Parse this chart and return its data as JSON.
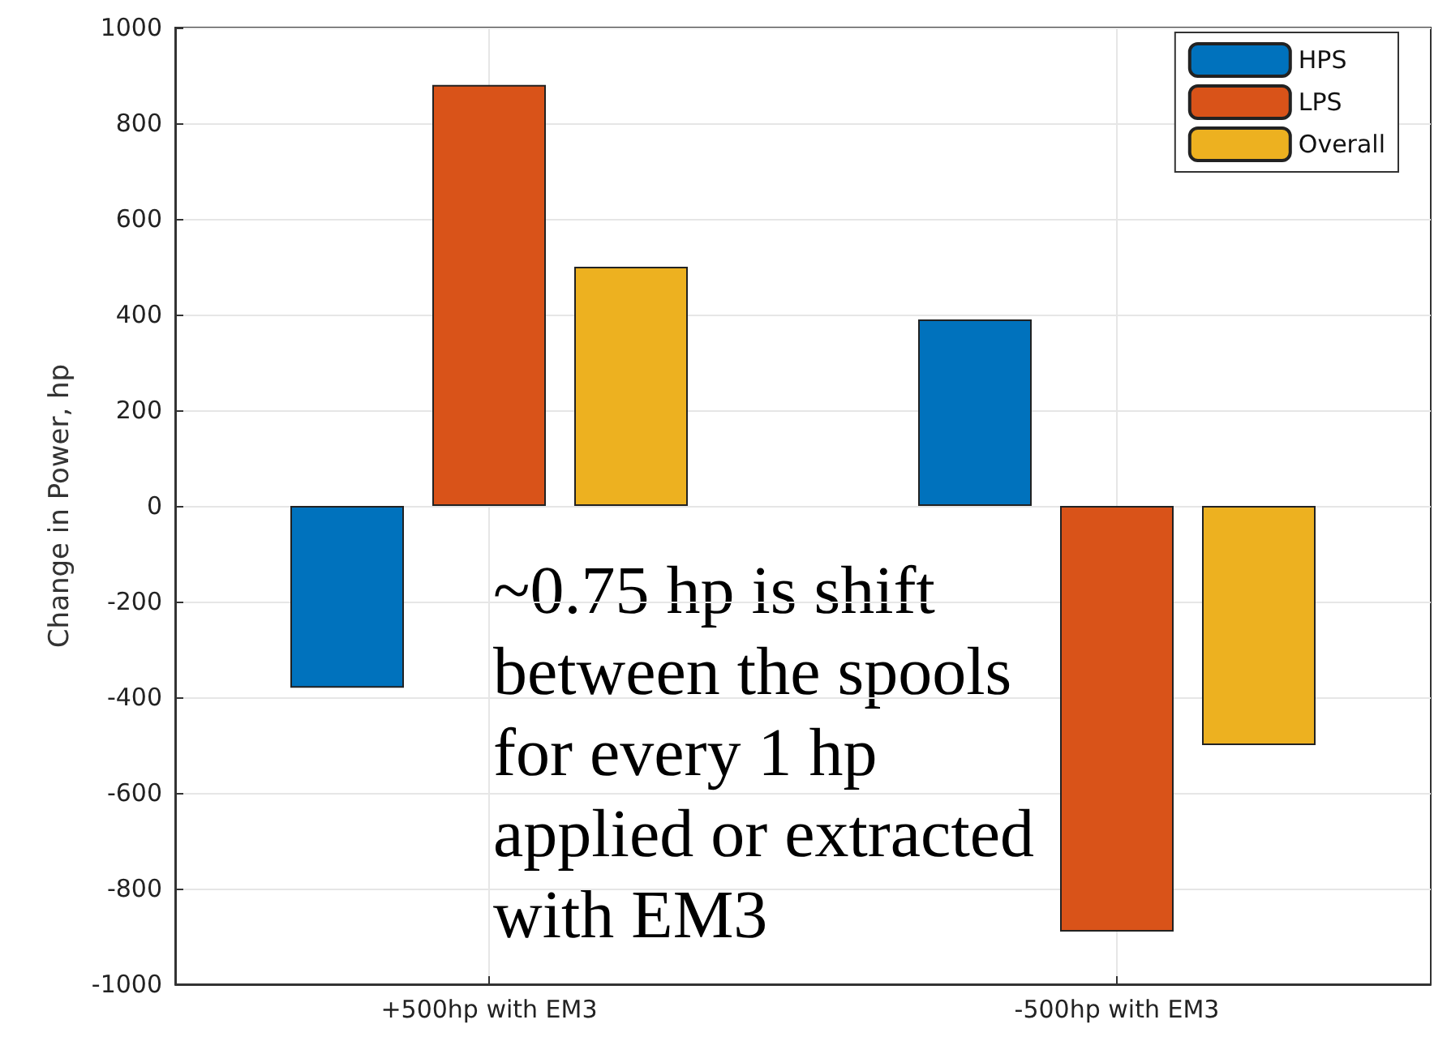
{
  "chart_data": {
    "type": "bar",
    "ylabel": "Change in Power, hp",
    "categories": [
      "+500hp with EM3",
      "-500hp with EM3"
    ],
    "series": [
      {
        "name": "HPS",
        "color": "#0072bd",
        "values": [
          -380,
          390
        ]
      },
      {
        "name": "LPS",
        "color": "#d95319",
        "values": [
          880,
          -890
        ]
      },
      {
        "name": "Overall",
        "color": "#edb120",
        "values": [
          500,
          -500
        ]
      }
    ],
    "ylim": [
      -1000,
      1000
    ],
    "yticks": [
      -1000,
      -800,
      -600,
      -400,
      -200,
      0,
      200,
      400,
      600,
      800,
      1000
    ],
    "grid": true,
    "legend": "top right",
    "annotations": [
      "~0.75 hp is shift\nbetween the spools\nfor every 1 hp\napplied or extracted\nwith EM3"
    ]
  }
}
